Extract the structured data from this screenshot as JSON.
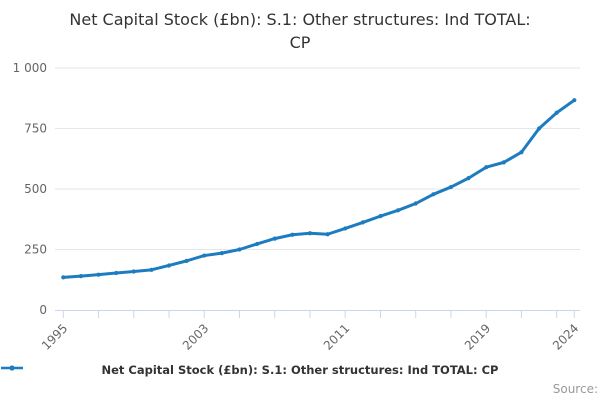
{
  "title": {
    "line1": "Net Capital Stock (£bn): S.1: Other structures: Ind TOTAL:",
    "line2": "CP"
  },
  "legend": {
    "label": "Net Capital Stock (£bn): S.1: Other structures: Ind TOTAL: CP"
  },
  "source_label": "Source:",
  "colors": {
    "line": "#1d7cc0",
    "axis": "#ccd6eb",
    "gridline": "#e6e6e6",
    "tick_text": "#666666",
    "title_text": "#333333",
    "source_text": "#999999"
  },
  "chart_data": {
    "type": "line",
    "title": "Net Capital Stock (£bn): S.1: Other structures: Ind TOTAL: CP",
    "xlabel": "",
    "ylabel": "",
    "x": [
      1995,
      1996,
      1997,
      1998,
      1999,
      2000,
      2001,
      2002,
      2003,
      2004,
      2005,
      2006,
      2007,
      2008,
      2009,
      2010,
      2011,
      2012,
      2013,
      2014,
      2015,
      2016,
      2017,
      2018,
      2019,
      2020,
      2021,
      2022,
      2023,
      2024
    ],
    "values": [
      135,
      140,
      146,
      153,
      159,
      166,
      184,
      203,
      225,
      235,
      250,
      273,
      295,
      311,
      317,
      313,
      337,
      362,
      388,
      412,
      440,
      478,
      508,
      545,
      590,
      610,
      652,
      750,
      815,
      867
    ],
    "series_name": "Net Capital Stock (£bn): S.1: Other structures: Ind TOTAL: CP",
    "ylim": [
      0,
      1000
    ],
    "yticks": [
      0,
      250,
      500,
      750,
      1000
    ],
    "ytick_labels": [
      "0",
      "250",
      "500",
      "750",
      "1 000"
    ],
    "xtick_interval_years": 2,
    "xtick_label_years": [
      1995,
      2003,
      2011,
      2019,
      2024
    ],
    "xtick_labels": [
      "1995",
      "2003",
      "2011",
      "2019",
      "2024"
    ],
    "grid": "horizontal",
    "legend_position": "bottom",
    "marker": "circle"
  }
}
